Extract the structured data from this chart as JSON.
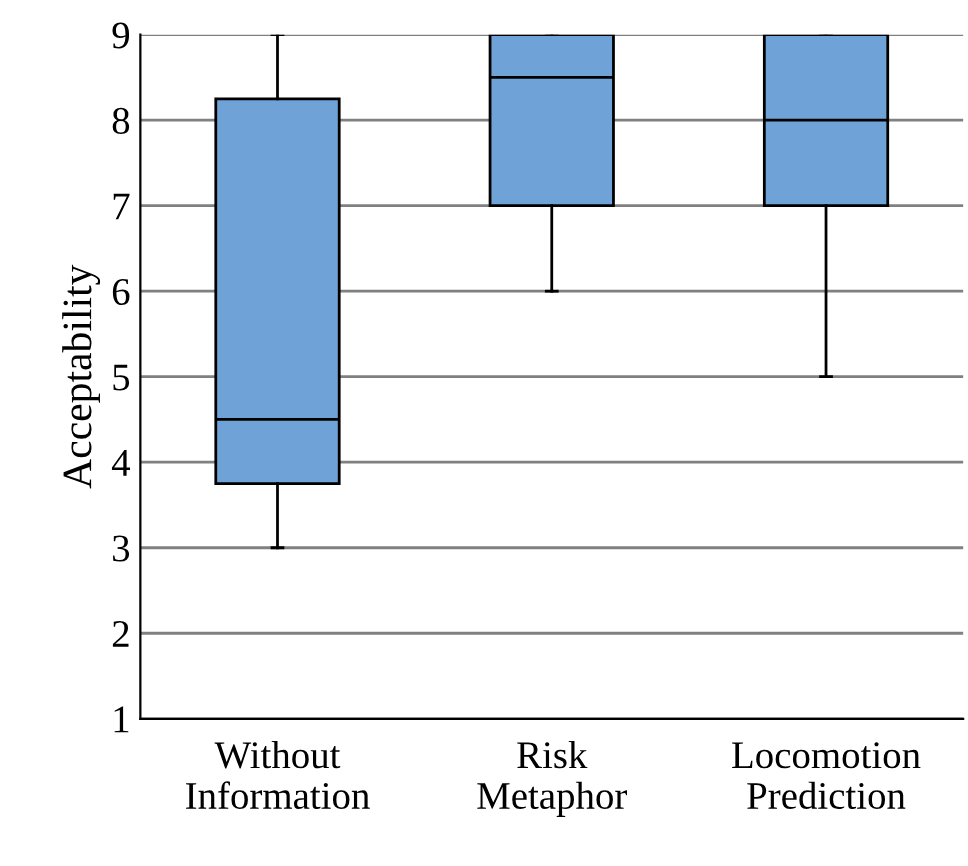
{
  "chart_data": {
    "type": "box",
    "ylabel": "Acceptability",
    "categories": [
      "Without\nInformation",
      "Risk\nMetaphor",
      "Locomotion\nPrediction"
    ],
    "boxes": [
      {
        "low": 3,
        "q1": 3.75,
        "median": 4.5,
        "q3": 8.25,
        "high": 9
      },
      {
        "low": 6,
        "q1": 7,
        "median": 8.5,
        "q3": 9,
        "high": 9
      },
      {
        "low": 5,
        "q1": 7,
        "median": 8,
        "q3": 9,
        "high": 9
      }
    ],
    "color": "#6fa3d8",
    "ylim": [
      1,
      9
    ],
    "yticks": [
      1,
      2,
      3,
      4,
      5,
      6,
      7,
      8,
      9
    ],
    "grid": "y"
  }
}
